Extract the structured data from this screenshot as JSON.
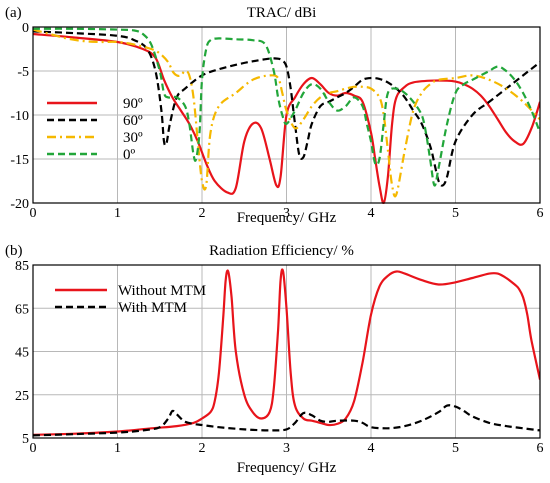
{
  "chart_data": [
    {
      "type": "line",
      "panel_label": "(a)",
      "title": "TRAC/ dBi",
      "xlabel": "Frequency/ GHz",
      "ylabel": "",
      "xlim": [
        0,
        6
      ],
      "ylim": [
        -20,
        0
      ],
      "xticks": [
        0,
        1,
        2,
        3,
        4,
        5,
        6
      ],
      "yticks": [
        0,
        -5,
        -10,
        -15,
        -20
      ],
      "xtick_labels": [
        "0",
        "1",
        "2",
        "3",
        "4",
        "5",
        "6"
      ],
      "ytick_labels": [
        "0",
        "-5",
        "-10",
        "-15",
        "-20"
      ],
      "grid": true,
      "legend_position": "left",
      "series": [
        {
          "name": "90º",
          "color": "#e8141b",
          "dash": "solid",
          "x": [
            0,
            0.5,
            1.0,
            1.3,
            1.45,
            1.55,
            1.65,
            1.75,
            1.85,
            1.95,
            2.05,
            2.15,
            2.3,
            2.4,
            2.5,
            2.6,
            2.7,
            2.8,
            2.88,
            2.93,
            3.0,
            3.1,
            3.2,
            3.3,
            3.4,
            3.5,
            3.6,
            3.7,
            3.8,
            3.9,
            4.0,
            4.05,
            4.1,
            4.15,
            4.2,
            4.25,
            4.3,
            4.4,
            4.5,
            4.7,
            4.9,
            5.0,
            5.1,
            5.2,
            5.3,
            5.4,
            5.5,
            5.6,
            5.7,
            5.8,
            5.9,
            6.0
          ],
          "y": [
            -0.8,
            -1.2,
            -1.7,
            -2.5,
            -3.5,
            -6.0,
            -8.0,
            -9.5,
            -11.0,
            -13.0,
            -15.5,
            -17.5,
            -18.8,
            -18.3,
            -13.0,
            -11.0,
            -11.5,
            -15.0,
            -18.0,
            -17.0,
            -10.0,
            -8.0,
            -6.5,
            -5.8,
            -6.5,
            -7.5,
            -7.8,
            -7.5,
            -7.8,
            -8.5,
            -12.0,
            -15.0,
            -18.0,
            -20.0,
            -17.0,
            -11.0,
            -8.0,
            -6.8,
            -6.3,
            -6.1,
            -6.1,
            -6.2,
            -6.5,
            -7.0,
            -7.8,
            -9.0,
            -10.5,
            -12.0,
            -13.0,
            -13.3,
            -11.5,
            -8.5
          ]
        },
        {
          "name": "60º",
          "color": "#000000",
          "dash": "dashed",
          "x": [
            0,
            0.5,
            1.0,
            1.2,
            1.35,
            1.45,
            1.52,
            1.55,
            1.58,
            1.62,
            1.7,
            1.8,
            2.0,
            2.2,
            2.4,
            2.6,
            2.8,
            2.9,
            2.95,
            3.0,
            3.05,
            3.1,
            3.15,
            3.2,
            3.25,
            3.3,
            3.4,
            3.5,
            3.6,
            3.7,
            3.8,
            3.9,
            4.0,
            4.1,
            4.2,
            4.3,
            4.4,
            4.5,
            4.6,
            4.7,
            4.75,
            4.8,
            4.85,
            4.9,
            5.0,
            5.2,
            5.4,
            5.6,
            5.8,
            6.0
          ],
          "y": [
            -0.5,
            -0.7,
            -1.0,
            -1.5,
            -2.5,
            -5.0,
            -9.5,
            -13.0,
            -13.2,
            -11.0,
            -8.0,
            -7.0,
            -5.5,
            -4.8,
            -4.3,
            -3.9,
            -3.6,
            -3.6,
            -3.8,
            -4.5,
            -7.0,
            -11.0,
            -14.5,
            -14.8,
            -13.0,
            -11.0,
            -9.0,
            -8.5,
            -8.0,
            -7.5,
            -6.8,
            -6.0,
            -5.8,
            -5.9,
            -6.3,
            -7.0,
            -8.0,
            -9.5,
            -11.0,
            -13.5,
            -15.5,
            -17.5,
            -18.0,
            -17.0,
            -13.0,
            -10.0,
            -8.5,
            -7.0,
            -5.5,
            -4.0
          ]
        },
        {
          "name": "30º",
          "color": "#f5b800",
          "dash": "dashdot",
          "x": [
            0,
            0.2,
            0.4,
            0.6,
            0.8,
            1.0,
            1.2,
            1.4,
            1.5,
            1.6,
            1.65,
            1.7,
            1.75,
            1.8,
            1.85,
            1.9,
            1.95,
            2.0,
            2.05,
            2.1,
            2.2,
            2.4,
            2.6,
            2.8,
            2.9,
            2.95,
            3.0,
            3.1,
            3.2,
            3.3,
            3.4,
            3.5,
            3.6,
            3.7,
            3.8,
            3.9,
            4.0,
            4.1,
            4.15,
            4.2,
            4.25,
            4.3,
            4.4,
            4.5,
            4.6,
            4.7,
            4.8,
            5.0,
            5.2,
            5.4,
            5.6,
            5.8,
            6.0
          ],
          "y": [
            -0.3,
            -0.8,
            -1.3,
            -1.6,
            -1.7,
            -1.7,
            -2.0,
            -2.5,
            -3.0,
            -4.0,
            -5.0,
            -5.5,
            -5.5,
            -5.0,
            -5.5,
            -8.0,
            -13.0,
            -17.5,
            -18.0,
            -12.0,
            -9.0,
            -7.5,
            -6.0,
            -5.5,
            -5.8,
            -7.5,
            -9.5,
            -11.5,
            -10.5,
            -9.0,
            -8.0,
            -7.5,
            -7.3,
            -7.0,
            -6.8,
            -6.8,
            -7.0,
            -8.0,
            -10.0,
            -14.0,
            -18.0,
            -19.0,
            -14.0,
            -9.5,
            -7.5,
            -6.5,
            -6.0,
            -5.8,
            -5.5,
            -6.0,
            -7.0,
            -8.5,
            -10.5
          ]
        },
        {
          "name": "0º",
          "color": "#22a63a",
          "dash": "dashed",
          "x": [
            0,
            0.5,
            1.0,
            1.2,
            1.3,
            1.4,
            1.5,
            1.55,
            1.6,
            1.7,
            1.8,
            1.85,
            1.9,
            1.93,
            1.97,
            2.0,
            2.05,
            2.1,
            2.2,
            2.4,
            2.6,
            2.75,
            2.85,
            2.9,
            2.95,
            3.0,
            3.1,
            3.2,
            3.3,
            3.4,
            3.5,
            3.6,
            3.7,
            3.8,
            3.9,
            3.95,
            4.0,
            4.05,
            4.1,
            4.15,
            4.2,
            4.3,
            4.4,
            4.5,
            4.6,
            4.65,
            4.7,
            4.75,
            4.8,
            4.9,
            5.0,
            5.1,
            5.2,
            5.3,
            5.4,
            5.5,
            5.6,
            5.7,
            5.8,
            5.9,
            6.0
          ],
          "y": [
            -0.2,
            -0.2,
            -0.3,
            -0.4,
            -0.8,
            -2.0,
            -5.0,
            -7.5,
            -8.0,
            -8.0,
            -9.0,
            -11.0,
            -14.5,
            -15.0,
            -12.0,
            -6.0,
            -2.5,
            -1.5,
            -1.3,
            -1.4,
            -1.5,
            -2.0,
            -5.0,
            -8.0,
            -10.0,
            -11.0,
            -9.5,
            -7.5,
            -6.5,
            -7.0,
            -8.5,
            -9.5,
            -9.0,
            -8.0,
            -9.0,
            -11.0,
            -13.0,
            -15.5,
            -15.0,
            -11.0,
            -7.5,
            -7.0,
            -7.5,
            -8.5,
            -10.0,
            -12.0,
            -15.0,
            -18.0,
            -16.0,
            -11.0,
            -7.5,
            -6.5,
            -6.0,
            -5.5,
            -5.0,
            -4.5,
            -5.0,
            -6.0,
            -7.5,
            -9.5,
            -12.0
          ]
        }
      ]
    },
    {
      "type": "line",
      "panel_label": "(b)",
      "title": "Radiation Efficiency/ %",
      "xlabel": "Frequency/ GHz",
      "ylabel": "",
      "xlim": [
        0,
        6
      ],
      "ylim": [
        5,
        85
      ],
      "xticks": [
        0,
        1,
        2,
        3,
        4,
        5,
        6
      ],
      "yticks": [
        5,
        25,
        45,
        65,
        85
      ],
      "xtick_labels": [
        "0",
        "1",
        "2",
        "3",
        "4",
        "5",
        "6"
      ],
      "ytick_labels": [
        "5",
        "25",
        "45",
        "65",
        "85"
      ],
      "grid": true,
      "legend_position": "top-left",
      "series": [
        {
          "name": "Without MTM",
          "color": "#e8141b",
          "dash": "solid",
          "x": [
            0,
            0.5,
            1.0,
            1.4,
            1.7,
            1.9,
            2.0,
            2.1,
            2.15,
            2.2,
            2.25,
            2.28,
            2.31,
            2.35,
            2.4,
            2.5,
            2.6,
            2.7,
            2.8,
            2.85,
            2.9,
            2.93,
            2.96,
            3.0,
            3.05,
            3.1,
            3.2,
            3.3,
            3.4,
            3.5,
            3.6,
            3.7,
            3.8,
            3.9,
            4.0,
            4.1,
            4.2,
            4.3,
            4.4,
            4.6,
            4.8,
            5.0,
            5.2,
            5.4,
            5.5,
            5.6,
            5.7,
            5.75,
            5.8,
            5.85,
            5.9,
            6.0
          ],
          "y": [
            6.5,
            7.0,
            8.0,
            9.5,
            10.5,
            12.0,
            14.0,
            17.0,
            22.0,
            35.0,
            60.0,
            78.0,
            82.0,
            70.0,
            45.0,
            25.0,
            17.0,
            14.0,
            17.0,
            28.0,
            55.0,
            78.0,
            82.0,
            65.0,
            35.0,
            20.0,
            14.0,
            13.0,
            12.0,
            11.0,
            11.5,
            14.0,
            22.0,
            40.0,
            62.0,
            75.0,
            80.0,
            82.0,
            81.0,
            78.0,
            76.0,
            77.0,
            79.0,
            81.0,
            81.0,
            79.0,
            76.0,
            74.0,
            70.0,
            62.0,
            50.0,
            32.0
          ]
        },
        {
          "name": "With MTM",
          "color": "#000000",
          "dash": "dashed",
          "x": [
            0,
            0.5,
            1.0,
            1.3,
            1.5,
            1.6,
            1.65,
            1.7,
            1.75,
            1.8,
            1.9,
            2.0,
            2.2,
            2.5,
            2.8,
            3.0,
            3.1,
            3.2,
            3.3,
            3.4,
            3.5,
            3.6,
            3.8,
            3.9,
            4.0,
            4.2,
            4.4,
            4.6,
            4.8,
            4.9,
            5.0,
            5.1,
            5.2,
            5.4,
            5.6,
            5.8,
            6.0
          ],
          "y": [
            6.2,
            6.8,
            7.5,
            8.5,
            10.0,
            14.0,
            17.5,
            16.0,
            14.0,
            12.5,
            11.5,
            11.0,
            10.0,
            9.0,
            8.5,
            9.0,
            12.0,
            16.5,
            15.5,
            13.0,
            12.5,
            13.0,
            13.0,
            12.0,
            10.0,
            9.5,
            10.5,
            13.0,
            17.0,
            20.0,
            19.5,
            17.5,
            15.0,
            12.0,
            10.5,
            9.5,
            8.5
          ]
        }
      ]
    }
  ]
}
